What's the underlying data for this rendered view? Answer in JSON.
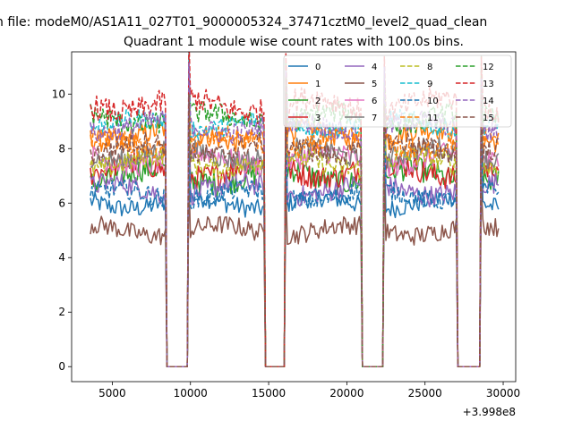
{
  "chart_data": {
    "type": "line",
    "suptitle": "n file: modeM0/AS1A11_027T01_9000005324_37471cztM0_level2_quad_clean",
    "title": "Quadrant 1 module wise count rates with 100.0s bins.",
    "xlabel": "",
    "ylabel": "",
    "x_offset_label": "+3.998e8",
    "xlim": [
      2400,
      30800
    ],
    "ylim": [
      -0.55,
      11.55
    ],
    "xticks": [
      5000,
      10000,
      15000,
      20000,
      25000,
      30000
    ],
    "xtick_labels": [
      "5000",
      "10000",
      "15000",
      "20000",
      "25000",
      "30000"
    ],
    "yticks": [
      0,
      2,
      4,
      6,
      8,
      10
    ],
    "ytick_labels": [
      "0",
      "2",
      "4",
      "6",
      "8",
      "10"
    ],
    "x_range": [
      3600,
      29700
    ],
    "bin_size": 100,
    "gaps": [
      {
        "start": 8500,
        "end": 9800
      },
      {
        "start": 14800,
        "end": 16000
      },
      {
        "start": 21000,
        "end": 22300
      },
      {
        "start": 27100,
        "end": 28500
      }
    ],
    "legend_position": "top-right",
    "legend_columns": 4,
    "series": [
      {
        "name": "0",
        "color": "#1f77b4",
        "dash": "solid",
        "mean": 6.0,
        "noise": 0.35
      },
      {
        "name": "1",
        "color": "#ff7f0e",
        "dash": "solid",
        "mean": 8.5,
        "noise": 0.4
      },
      {
        "name": "2",
        "color": "#2ca02c",
        "dash": "solid",
        "mean": 7.0,
        "noise": 0.45
      },
      {
        "name": "3",
        "color": "#d62728",
        "dash": "solid",
        "mean": 7.2,
        "noise": 0.45
      },
      {
        "name": "4",
        "color": "#9467bd",
        "dash": "solid",
        "mean": 6.5,
        "noise": 0.4
      },
      {
        "name": "5",
        "color": "#8c564b",
        "dash": "solid",
        "mean": 5.0,
        "noise": 0.35
      },
      {
        "name": "6",
        "color": "#e377c2",
        "dash": "solid",
        "mean": 7.6,
        "noise": 0.4
      },
      {
        "name": "7",
        "color": "#7f7f7f",
        "dash": "solid",
        "mean": 7.8,
        "noise": 0.4
      },
      {
        "name": "8",
        "color": "#bcbd22",
        "dash": "dashed",
        "mean": 7.5,
        "noise": 0.4
      },
      {
        "name": "9",
        "color": "#17becf",
        "dash": "dashed",
        "mean": 8.9,
        "noise": 0.35
      },
      {
        "name": "10",
        "color": "#1f77b4",
        "dash": "dashed",
        "mean": 6.3,
        "noise": 0.35
      },
      {
        "name": "11",
        "color": "#ff7f0e",
        "dash": "dashed",
        "mean": 8.2,
        "noise": 0.4
      },
      {
        "name": "12",
        "color": "#2ca02c",
        "dash": "dashed",
        "mean": 9.1,
        "noise": 0.4
      },
      {
        "name": "13",
        "color": "#d62728",
        "dash": "dashed",
        "mean": 9.6,
        "noise": 0.45
      },
      {
        "name": "14",
        "color": "#9467bd",
        "dash": "dashed",
        "mean": 8.8,
        "noise": 0.4
      },
      {
        "name": "15",
        "color": "#8c564b",
        "dash": "dashed",
        "mean": 8.0,
        "noise": 0.4
      }
    ]
  }
}
